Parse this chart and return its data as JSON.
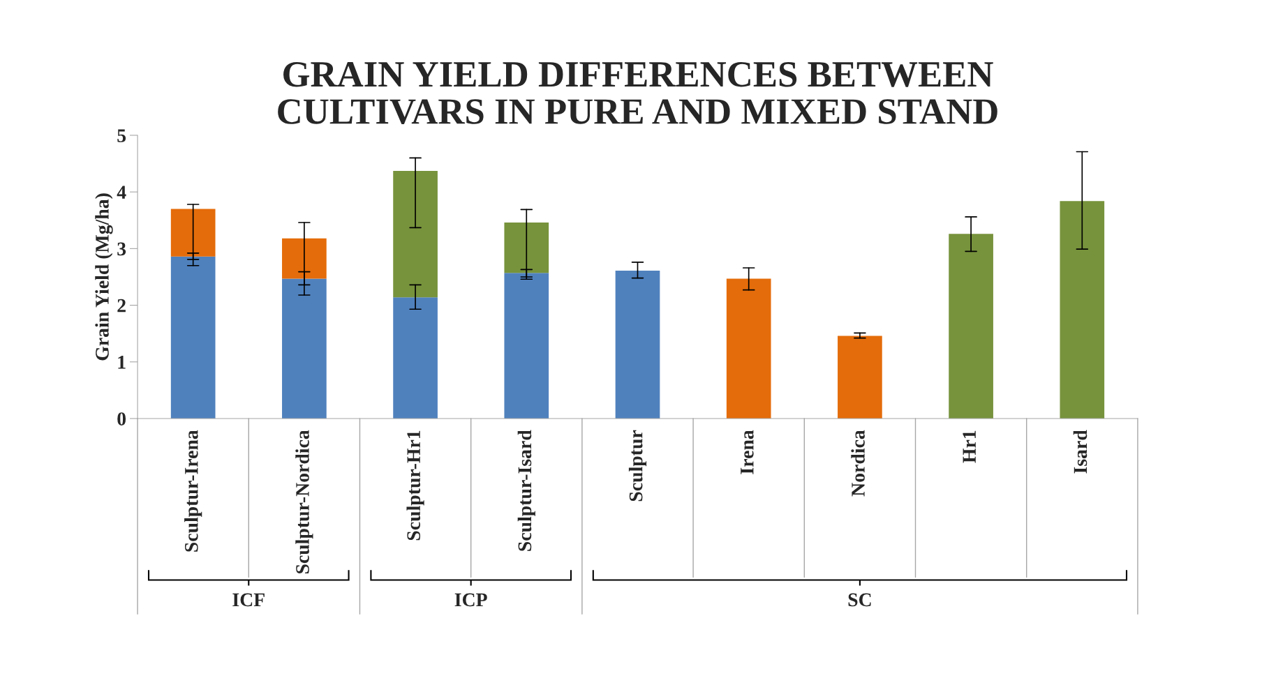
{
  "chart_data": {
    "type": "bar",
    "stacked": true,
    "title": "GRAIN YIELD DIFFERENCES BETWEEN\nCULTIVARS IN PURE AND MIXED STAND",
    "ylabel": "Grain Yield (Mg/ha)",
    "categories": [
      "Sculptur-Irena",
      "Sculptur-Nordica",
      "Sculptur-Hr1",
      "Sculptur-Isard",
      "Sculptur",
      "Irena",
      "Nordica",
      "Hr1",
      "Isard"
    ],
    "series": [
      {
        "color": "#4f81bd",
        "values": [
          2.86,
          2.47,
          2.14,
          2.57,
          2.61,
          null,
          null,
          null,
          null
        ],
        "errors": [
          [
            2.81,
            2.92
          ],
          [
            2.36,
            2.59
          ],
          [
            1.93,
            2.36
          ],
          [
            2.5,
            2.63
          ],
          [
            2.48,
            2.76
          ],
          null,
          null,
          null,
          null
        ]
      },
      {
        "color": "#e46c0a",
        "values": [
          0.84,
          0.71,
          null,
          null,
          null,
          2.47,
          1.46,
          null,
          null
        ],
        "errors": [
          [
            2.7,
            3.78
          ],
          [
            2.18,
            3.46
          ],
          null,
          null,
          null,
          [
            2.27,
            2.66
          ],
          [
            1.42,
            1.51
          ],
          null,
          null
        ]
      },
      {
        "color": "#77933c",
        "values": [
          null,
          null,
          2.23,
          0.89,
          null,
          null,
          null,
          3.26,
          3.84
        ],
        "errors": [
          null,
          null,
          [
            3.37,
            4.6
          ],
          [
            2.46,
            3.69
          ],
          null,
          null,
          null,
          [
            2.95,
            3.56
          ],
          [
            2.99,
            4.71
          ]
        ]
      }
    ],
    "ylim": [
      0,
      5
    ],
    "yticks": [
      0,
      1,
      2,
      3,
      4,
      5
    ],
    "grid": false,
    "legend": false,
    "annotations": [
      "ICF",
      "ICP",
      "SC"
    ]
  }
}
